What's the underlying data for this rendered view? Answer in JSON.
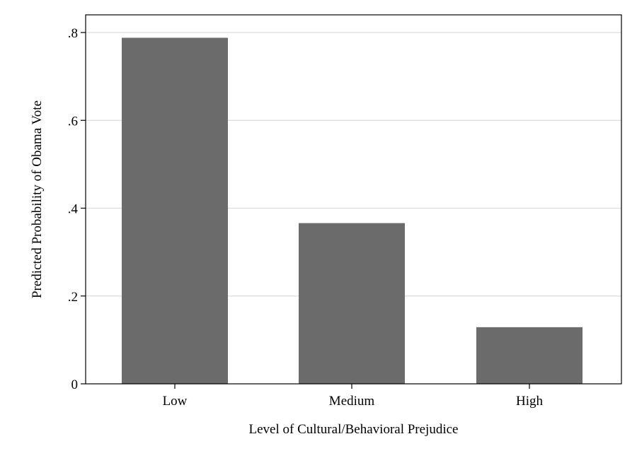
{
  "chart_data": {
    "type": "bar",
    "categories": [
      "Low",
      "Medium",
      "High"
    ],
    "values": [
      0.788,
      0.366,
      0.129
    ],
    "xlabel": "Level of Cultural/Behavioral Prejudice",
    "ylabel": "Predicted Probability of Obama Vote",
    "ylim": [
      0,
      0.8
    ],
    "yticks": [
      0,
      0.2,
      0.4,
      0.6,
      0.8
    ],
    "ytick_labels": [
      "0",
      ".2",
      ".4",
      ".6",
      ".8"
    ],
    "grid": true,
    "legend": "none",
    "colors": {
      "bar": "#6b6b6b",
      "grid": "#dcdcdc",
      "axis": "#000000"
    }
  }
}
